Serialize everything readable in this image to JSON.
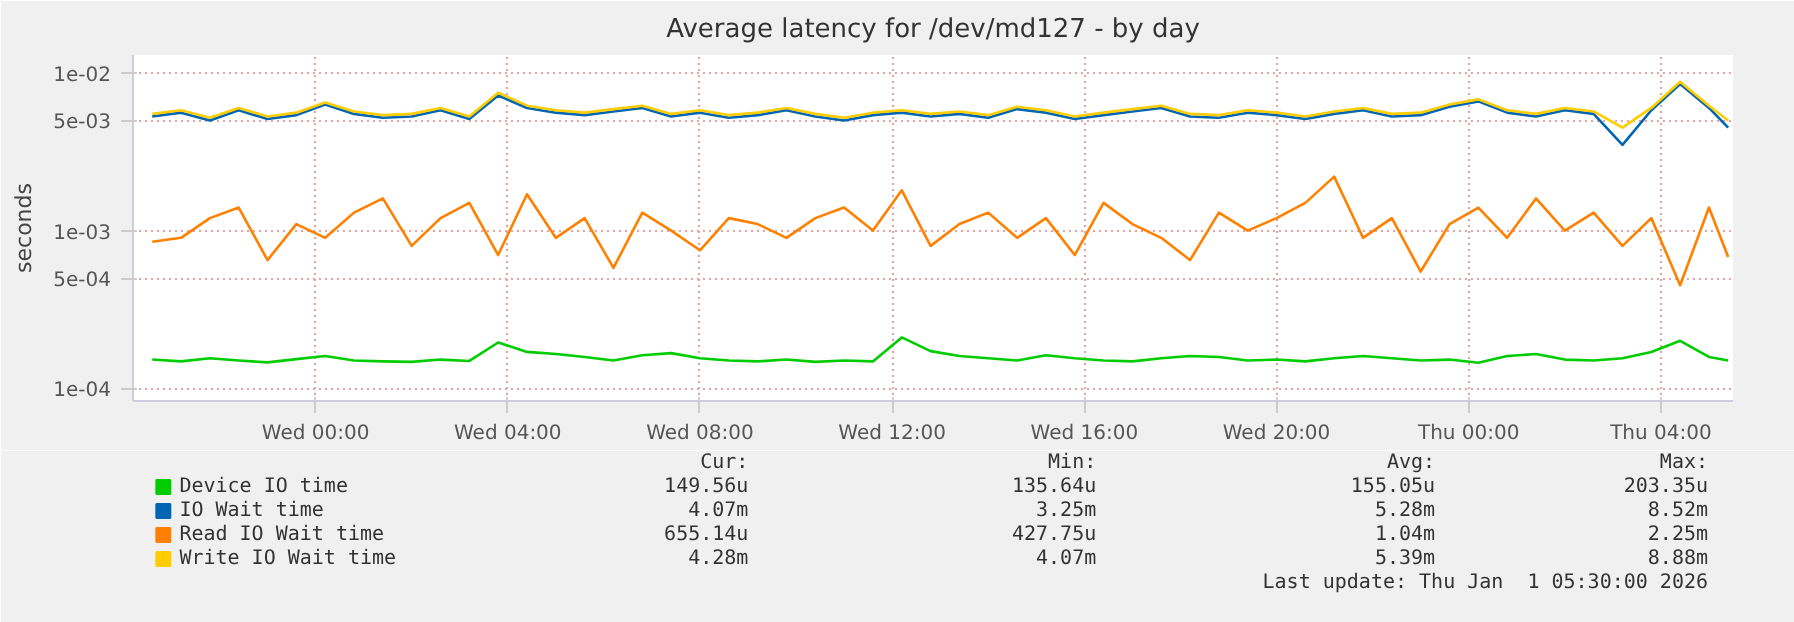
{
  "chart_data": {
    "type": "line",
    "title": "Average latency for /dev/md127 - by day",
    "ylabel": "seconds",
    "log": "y",
    "grid": true,
    "legend": "bottom",
    "xlim": [
      "2025-12-30T20:12",
      "2026-01-01T05:30"
    ],
    "ylim": [
      8.3e-05,
      0.013
    ],
    "xticks": [
      {
        "value": "2025-12-31T00:00",
        "label": "Wed 00:00"
      },
      {
        "value": "2025-12-31T04:00",
        "label": "Wed 04:00"
      },
      {
        "value": "2025-12-31T08:00",
        "label": "Wed 08:00"
      },
      {
        "value": "2025-12-31T12:00",
        "label": "Wed 12:00"
      },
      {
        "value": "2025-12-31T16:00",
        "label": "Wed 16:00"
      },
      {
        "value": "2025-12-31T20:00",
        "label": "Wed 20:00"
      },
      {
        "value": "2026-01-01T00:00",
        "label": "Thu 00:00"
      },
      {
        "value": "2026-01-01T04:00",
        "label": "Thu 04:00"
      }
    ],
    "yticks": [
      {
        "value": 0.0001,
        "label": "1e-04"
      },
      {
        "value": 0.0005,
        "label": "5e-04"
      },
      {
        "value": 0.001,
        "label": "1e-03"
      },
      {
        "value": 0.005,
        "label": "5e-03"
      },
      {
        "value": 0.01,
        "label": "1e-02"
      }
    ],
    "x": [
      "2025-12-30T20:36",
      "2025-12-30T21:12",
      "2025-12-30T21:48",
      "2025-12-30T22:24",
      "2025-12-30T23:00",
      "2025-12-30T23:36",
      "2025-12-31T00:12",
      "2025-12-31T00:48",
      "2025-12-31T01:24",
      "2025-12-31T02:00",
      "2025-12-31T02:36",
      "2025-12-31T03:12",
      "2025-12-31T03:48",
      "2025-12-31T04:24",
      "2025-12-31T05:00",
      "2025-12-31T05:36",
      "2025-12-31T06:12",
      "2025-12-31T06:48",
      "2025-12-31T07:24",
      "2025-12-31T08:00",
      "2025-12-31T08:36",
      "2025-12-31T09:12",
      "2025-12-31T09:48",
      "2025-12-31T10:24",
      "2025-12-31T11:00",
      "2025-12-31T11:36",
      "2025-12-31T12:12",
      "2025-12-31T12:48",
      "2025-12-31T13:24",
      "2025-12-31T14:00",
      "2025-12-31T14:36",
      "2025-12-31T15:12",
      "2025-12-31T15:48",
      "2025-12-31T16:24",
      "2025-12-31T17:00",
      "2025-12-31T17:36",
      "2025-12-31T18:12",
      "2025-12-31T18:48",
      "2025-12-31T19:24",
      "2025-12-31T20:00",
      "2025-12-31T20:36",
      "2025-12-31T21:12",
      "2025-12-31T21:48",
      "2025-12-31T22:24",
      "2025-12-31T23:00",
      "2025-12-31T23:36",
      "2026-01-01T00:12",
      "2026-01-01T00:48",
      "2026-01-01T01:24",
      "2026-01-01T02:00",
      "2026-01-01T02:36",
      "2026-01-01T03:12",
      "2026-01-01T03:48",
      "2026-01-01T04:24",
      "2026-01-01T05:00",
      "2026-01-01T05:24"
    ],
    "series": [
      {
        "name": "Device IO time",
        "color": "#00cc00",
        "values": [
          0.000152,
          0.000148,
          0.000155,
          0.00015,
          0.000146,
          0.000153,
          0.00016,
          0.00015,
          0.000148,
          0.000147,
          0.000152,
          0.000149,
          0.000195,
          0.00017,
          0.000165,
          0.000158,
          0.00015,
          0.000162,
          0.000167,
          0.000155,
          0.00015,
          0.000148,
          0.000152,
          0.000147,
          0.00015,
          0.000148,
          0.00021,
          0.000172,
          0.00016,
          0.000155,
          0.00015,
          0.000162,
          0.000155,
          0.00015,
          0.000148,
          0.000155,
          0.00016,
          0.000158,
          0.00015,
          0.000152,
          0.000148,
          0.000155,
          0.00016,
          0.000155,
          0.00015,
          0.000152,
          0.000145,
          0.00016,
          0.000165,
          0.000152,
          0.00015,
          0.000155,
          0.00017,
          0.0002,
          0.000158,
          0.00015
        ]
      },
      {
        "name": "IO Wait time",
        "color": "#0066b3",
        "values": [
          0.0053,
          0.0056,
          0.005,
          0.0058,
          0.0051,
          0.0054,
          0.0063,
          0.0055,
          0.0052,
          0.0053,
          0.0058,
          0.0051,
          0.0072,
          0.006,
          0.0056,
          0.0054,
          0.0057,
          0.006,
          0.0053,
          0.0056,
          0.0052,
          0.0054,
          0.0058,
          0.0053,
          0.005,
          0.0054,
          0.0056,
          0.0053,
          0.0055,
          0.0052,
          0.0059,
          0.0056,
          0.0051,
          0.0054,
          0.0057,
          0.006,
          0.0053,
          0.0052,
          0.0056,
          0.0054,
          0.0051,
          0.0055,
          0.0058,
          0.0053,
          0.0054,
          0.0061,
          0.0066,
          0.0056,
          0.0053,
          0.0058,
          0.0055,
          0.0035,
          0.0058,
          0.0085,
          0.006,
          0.0045
        ]
      },
      {
        "name": "Read IO Wait time",
        "color": "#ff8000",
        "values": [
          0.00085,
          0.0009,
          0.0012,
          0.0014,
          0.00065,
          0.0011,
          0.0009,
          0.0013,
          0.0016,
          0.0008,
          0.0012,
          0.0015,
          0.0007,
          0.0017,
          0.0009,
          0.0012,
          0.00058,
          0.0013,
          0.001,
          0.00075,
          0.0012,
          0.0011,
          0.0009,
          0.0012,
          0.0014,
          0.001,
          0.0018,
          0.0008,
          0.0011,
          0.0013,
          0.0009,
          0.0012,
          0.0007,
          0.0015,
          0.0011,
          0.0009,
          0.00065,
          0.0013,
          0.001,
          0.0012,
          0.0015,
          0.0022,
          0.0009,
          0.0012,
          0.00055,
          0.0011,
          0.0014,
          0.0009,
          0.0016,
          0.001,
          0.0013,
          0.0008,
          0.0012,
          0.00045,
          0.0014,
          0.00068
        ]
      },
      {
        "name": "Write IO Wait time",
        "color": "#ffcc00",
        "values": [
          0.0055,
          0.0058,
          0.0052,
          0.006,
          0.0053,
          0.0056,
          0.0065,
          0.0057,
          0.0054,
          0.0055,
          0.006,
          0.0053,
          0.0075,
          0.0062,
          0.0058,
          0.0056,
          0.0059,
          0.0062,
          0.0055,
          0.0058,
          0.0054,
          0.0056,
          0.006,
          0.0055,
          0.0052,
          0.0056,
          0.0058,
          0.0055,
          0.0057,
          0.0054,
          0.0061,
          0.0058,
          0.0053,
          0.0056,
          0.0059,
          0.0062,
          0.0055,
          0.0054,
          0.0058,
          0.0056,
          0.0053,
          0.0057,
          0.006,
          0.0055,
          0.0056,
          0.0063,
          0.0068,
          0.0058,
          0.0055,
          0.006,
          0.0057,
          0.0045,
          0.006,
          0.0088,
          0.0062,
          0.005
        ]
      }
    ],
    "annotations": [
      "Cur:",
      "Min:",
      "Avg:",
      "Max:",
      "149.56u",
      "135.64u",
      "155.05u",
      "203.35u",
      "4.07m",
      "3.25m",
      "5.28m",
      "8.52m",
      "655.14u",
      "427.75u",
      "1.04m",
      "2.25m",
      "4.28m",
      "4.07m",
      "5.39m",
      "8.88m",
      "Last update: Thu Jan  1 05:30:00 2026"
    ]
  }
}
